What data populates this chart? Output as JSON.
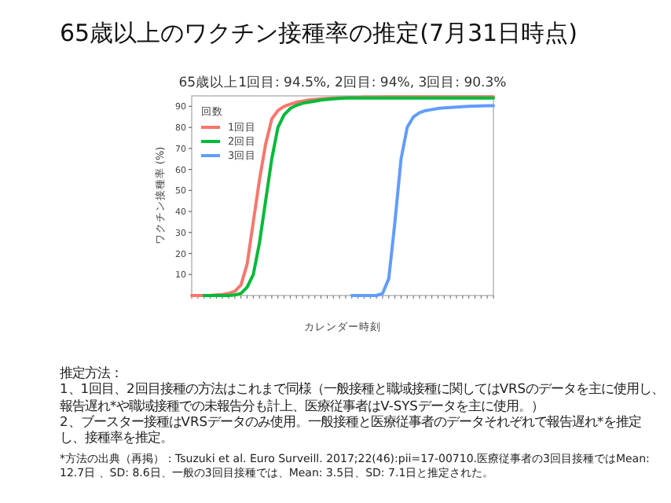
{
  "chart_data": {
    "type": "line",
    "title": "65歳以上のワクチン接種率の推定(7月31日時点)",
    "subtitle": "65歳以上1回目: 94.5%, 2回目: 94%, 3回目: 90.3%",
    "xlabel": "カレンダー時刻",
    "ylabel": "ワクチン接種率 (%)",
    "legend_title": "回数",
    "legend": "top left",
    "categories": [
      null,
      null,
      null,
      null,
      null,
      null,
      null,
      null,
      null,
      null,
      null,
      null,
      null,
      null,
      null,
      null,
      null,
      null,
      null,
      null,
      null,
      null,
      null,
      null,
      null,
      null,
      null,
      null,
      null,
      null,
      null,
      null,
      null,
      null,
      null,
      null,
      null,
      null,
      null,
      null,
      null,
      null,
      null,
      null,
      null,
      null,
      null,
      null,
      null,
      null
    ],
    "ylim": [
      0,
      95
    ],
    "yticks": [
      10,
      20,
      30,
      40,
      50,
      60,
      70,
      80,
      90
    ],
    "series": [
      {
        "name": "1回目",
        "color": "#f8766d",
        "values": [
          0,
          0,
          0,
          0,
          0.3,
          0.5,
          1,
          2,
          5,
          15,
          35,
          55,
          72,
          84,
          88,
          90,
          91,
          92,
          92.5,
          93,
          93.3,
          93.6,
          93.8,
          94,
          94.1,
          94.2,
          94.3,
          94.3,
          94.4,
          94.4,
          94.4,
          94.5,
          94.5,
          94.5,
          94.5,
          94.5,
          94.5,
          94.5,
          94.5,
          94.5,
          94.5,
          94.5,
          94.5,
          94.5,
          94.5,
          94.5,
          94.5,
          94.5,
          94.5,
          94.5
        ]
      },
      {
        "name": "2回目",
        "color": "#00ba38",
        "values": [
          null,
          null,
          0,
          0,
          0,
          0,
          0,
          0.3,
          1,
          4,
          10,
          25,
          45,
          65,
          80,
          86,
          89,
          90.5,
          91.5,
          92,
          92.5,
          93,
          93.3,
          93.6,
          93.8,
          94,
          94,
          94,
          94,
          94,
          94,
          94,
          94,
          94,
          94,
          94,
          94,
          94,
          94,
          94,
          94,
          94,
          94,
          94,
          94,
          94,
          94,
          94,
          94,
          94
        ]
      },
      {
        "name": "3回目",
        "color": "#619cff",
        "values": [
          null,
          null,
          null,
          null,
          null,
          null,
          null,
          null,
          null,
          null,
          null,
          null,
          null,
          null,
          null,
          null,
          null,
          null,
          null,
          null,
          null,
          null,
          null,
          null,
          null,
          null,
          0,
          0,
          0,
          0,
          0,
          1,
          8,
          35,
          65,
          80,
          85,
          87,
          88,
          88.5,
          89,
          89.3,
          89.5,
          89.7,
          89.9,
          90,
          90.1,
          90.2,
          90.3,
          90.3
        ]
      }
    ],
    "annotations": [
      "推定方法：",
      "1、1回目、2回目接種の方法はこれまで同様（一般接種と職域接種に関してはVRSのデータを主に使用し、報告遅れ*や職域接種での未報告分も計上、医療従事者はV-SYSデータを主に使用。）",
      "2、ブースター接種はVRSデータのみ使用。一般接種と医療従事者のデータそれぞれで報告遅れ*を推定し、接種率を推定。",
      "*方法の出典（再掲）：Tsuzuki et al. Euro Surveill. 2017;22(46):pii=17-00710.医療従事者の3回目接種ではMean: 12.7日 、SD: 8.6日、一般の3回目接種では、Mean: 3.5日、SD: 7.1日と推定された。"
    ]
  }
}
